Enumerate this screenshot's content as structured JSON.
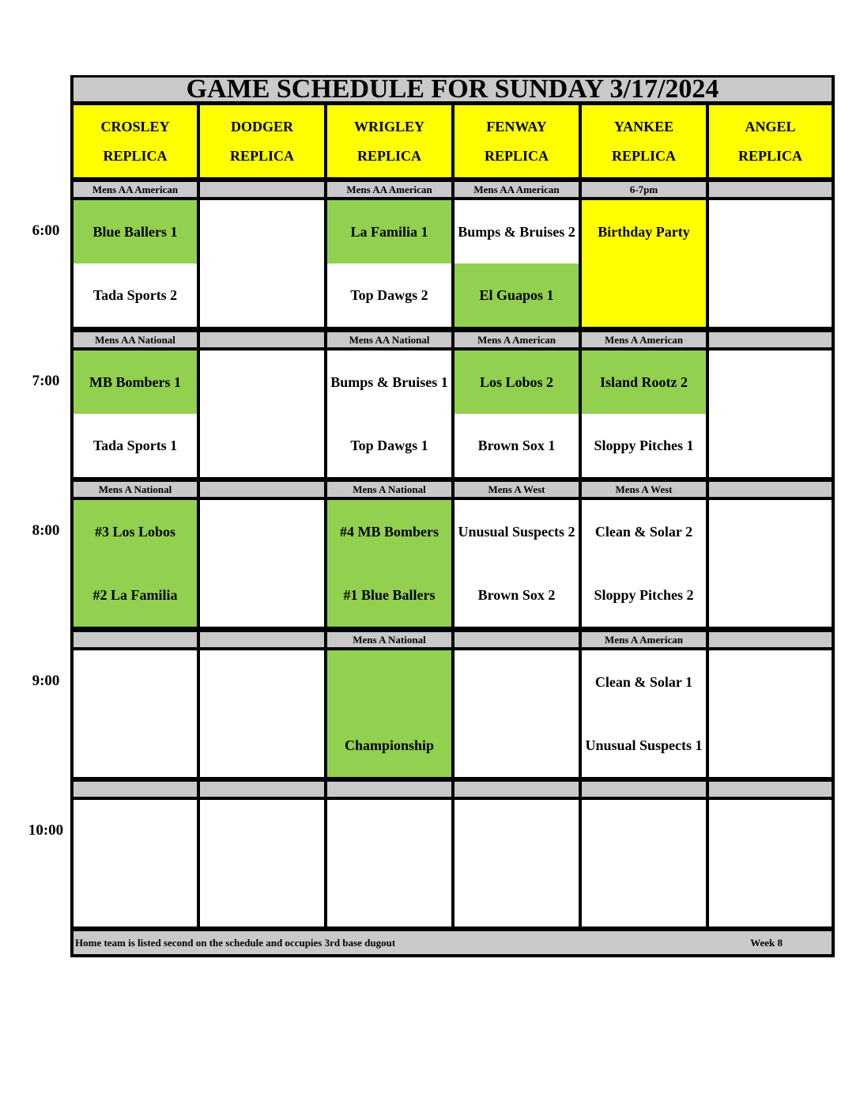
{
  "title": "GAME SCHEDULE FOR SUNDAY 3/17/2024",
  "colors": {
    "green": "#92D050",
    "yellow": "#FFFF00",
    "white": "#FFFFFF",
    "gray": "#C9C9C9"
  },
  "fields": [
    {
      "name": "CROSLEY",
      "sub": "REPLICA"
    },
    {
      "name": "DODGER",
      "sub": "REPLICA"
    },
    {
      "name": "WRIGLEY",
      "sub": "REPLICA"
    },
    {
      "name": "FENWAY",
      "sub": "REPLICA"
    },
    {
      "name": "YANKEE",
      "sub": "REPLICA"
    },
    {
      "name": "ANGEL",
      "sub": "REPLICA"
    }
  ],
  "slots": [
    {
      "time": "6:00",
      "cells": [
        {
          "division": "Mens AA American",
          "top": "Blue Ballers 1",
          "bottom": "Tada Sports 2",
          "top_color": "green",
          "bottom_color": "white"
        },
        {
          "division": "",
          "top": "",
          "bottom": "",
          "top_color": "white",
          "bottom_color": "white"
        },
        {
          "division": "Mens AA American",
          "top": "La Familia 1",
          "bottom": "Top Dawgs 2",
          "top_color": "green",
          "bottom_color": "white"
        },
        {
          "division": "Mens AA American",
          "top": "Bumps & Bruises 2",
          "bottom": "El Guapos 1",
          "top_color": "white",
          "bottom_color": "green"
        },
        {
          "division": "6-7pm",
          "top": "Birthday Party",
          "bottom": "",
          "top_color": "yellow",
          "bottom_color": "yellow"
        },
        {
          "division": "",
          "top": "",
          "bottom": "",
          "top_color": "white",
          "bottom_color": "white"
        }
      ]
    },
    {
      "time": "7:00",
      "cells": [
        {
          "division": "Mens AA National",
          "top": "MB Bombers 1",
          "bottom": "Tada Sports 1",
          "top_color": "green",
          "bottom_color": "white"
        },
        {
          "division": "",
          "top": "",
          "bottom": "",
          "top_color": "white",
          "bottom_color": "white"
        },
        {
          "division": "Mens AA National",
          "top": "Bumps & Bruises 1",
          "bottom": "Top Dawgs 1",
          "top_color": "white",
          "bottom_color": "white"
        },
        {
          "division": "Mens A American",
          "top": "Los Lobos 2",
          "bottom": "Brown Sox 1",
          "top_color": "green",
          "bottom_color": "white"
        },
        {
          "division": "Mens A American",
          "top": "Island Rootz 2",
          "bottom": "Sloppy Pitches 1",
          "top_color": "green",
          "bottom_color": "white"
        },
        {
          "division": "",
          "top": "",
          "bottom": "",
          "top_color": "white",
          "bottom_color": "white"
        }
      ]
    },
    {
      "time": "8:00",
      "cells": [
        {
          "division": "Mens A National",
          "top": "#3 Los Lobos",
          "bottom": "#2 La Familia",
          "top_color": "green",
          "bottom_color": "green"
        },
        {
          "division": "",
          "top": "",
          "bottom": "",
          "top_color": "white",
          "bottom_color": "white"
        },
        {
          "division": "Mens A National",
          "top": "#4 MB Bombers",
          "bottom": "#1 Blue Ballers",
          "top_color": "green",
          "bottom_color": "green"
        },
        {
          "division": "Mens A West",
          "top": "Unusual Suspects 2",
          "bottom": "Brown Sox 2",
          "top_color": "white",
          "bottom_color": "white"
        },
        {
          "division": "Mens A West",
          "top": "Clean & Solar 2",
          "bottom": "Sloppy Pitches 2",
          "top_color": "white",
          "bottom_color": "white"
        },
        {
          "division": "",
          "top": "",
          "bottom": "",
          "top_color": "white",
          "bottom_color": "white"
        }
      ]
    },
    {
      "time": "9:00",
      "cells": [
        {
          "division": "",
          "top": "",
          "bottom": "",
          "top_color": "white",
          "bottom_color": "white"
        },
        {
          "division": "",
          "top": "",
          "bottom": "",
          "top_color": "white",
          "bottom_color": "white"
        },
        {
          "division": "Mens A National",
          "top": "",
          "bottom": "Championship",
          "top_color": "green",
          "bottom_color": "green"
        },
        {
          "division": "",
          "top": "",
          "bottom": "",
          "top_color": "white",
          "bottom_color": "white"
        },
        {
          "division": "Mens A American",
          "top": "Clean & Solar 1",
          "bottom": "Unusual Suspects 1",
          "top_color": "white",
          "bottom_color": "white"
        },
        {
          "division": "",
          "top": "",
          "bottom": "",
          "top_color": "white",
          "bottom_color": "white"
        }
      ]
    },
    {
      "time": "10:00",
      "cells": [
        {
          "division": "",
          "top": "",
          "bottom": "",
          "top_color": "white",
          "bottom_color": "white"
        },
        {
          "division": "",
          "top": "",
          "bottom": "",
          "top_color": "white",
          "bottom_color": "white"
        },
        {
          "division": "",
          "top": "",
          "bottom": "",
          "top_color": "white",
          "bottom_color": "white"
        },
        {
          "division": "",
          "top": "",
          "bottom": "",
          "top_color": "white",
          "bottom_color": "white"
        },
        {
          "division": "",
          "top": "",
          "bottom": "",
          "top_color": "white",
          "bottom_color": "white"
        },
        {
          "division": "",
          "top": "",
          "bottom": "",
          "top_color": "white",
          "bottom_color": "white"
        }
      ]
    }
  ],
  "footer": {
    "note": "Home team is listed second on the schedule and occupies 3rd base dugout",
    "week": "Week 8"
  }
}
